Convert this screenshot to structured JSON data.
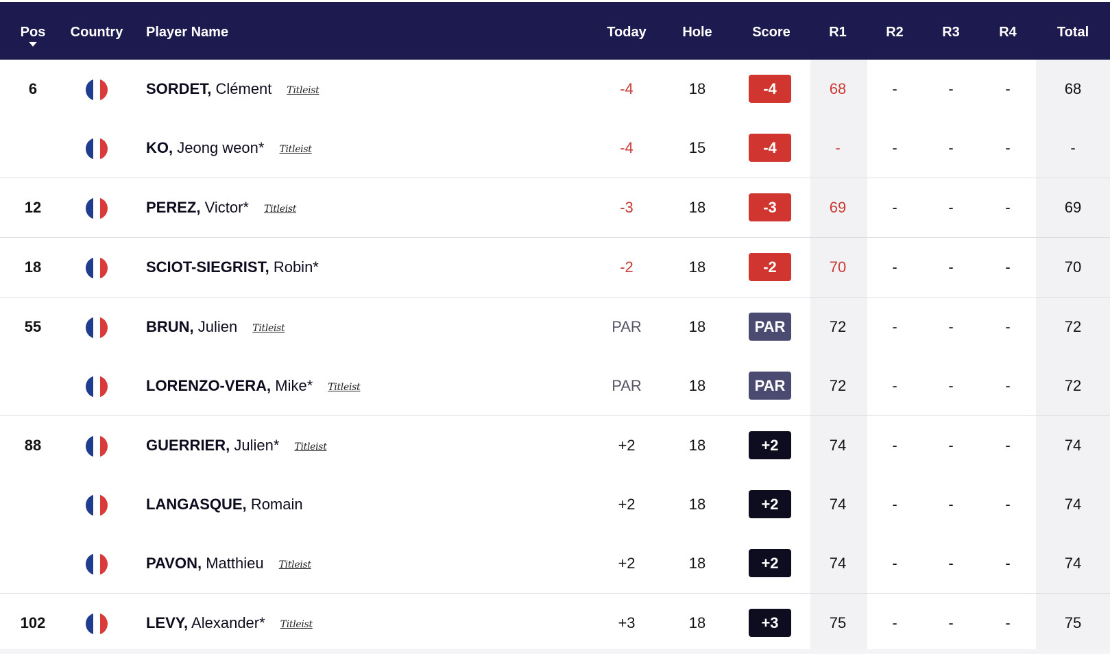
{
  "colors": {
    "header_bg": "#1c1a4f",
    "under_par": "#d0352f",
    "par": "#4b4b72",
    "over_par": "#0d0d1f"
  },
  "header": {
    "pos": "Pos",
    "country": "Country",
    "player_name": "Player Name",
    "today": "Today",
    "hole": "Hole",
    "score": "Score",
    "r1": "R1",
    "r2": "R2",
    "r3": "R3",
    "r4": "R4",
    "total": "Total"
  },
  "rows": [
    {
      "pos": "6",
      "last": "SORDET,",
      "first": "Clément",
      "brand": "Titleist",
      "today": "-4",
      "hole": "18",
      "score": "-4",
      "r1": "68",
      "r2": "-",
      "r3": "-",
      "r4": "-",
      "total": "68",
      "status": "under"
    },
    {
      "pos": "",
      "last": "KO,",
      "first": "Jeong weon*",
      "brand": "Titleist",
      "today": "-4",
      "hole": "15",
      "score": "-4",
      "r1": "-",
      "r2": "-",
      "r3": "-",
      "r4": "-",
      "total": "-",
      "status": "under"
    },
    {
      "pos": "12",
      "last": "PEREZ,",
      "first": "Victor*",
      "brand": "Titleist",
      "today": "-3",
      "hole": "18",
      "score": "-3",
      "r1": "69",
      "r2": "-",
      "r3": "-",
      "r4": "-",
      "total": "69",
      "status": "under"
    },
    {
      "pos": "18",
      "last": "SCIOT-SIEGRIST,",
      "first": "Robin*",
      "brand": "",
      "today": "-2",
      "hole": "18",
      "score": "-2",
      "r1": "70",
      "r2": "-",
      "r3": "-",
      "r4": "-",
      "total": "70",
      "status": "under"
    },
    {
      "pos": "55",
      "last": "BRUN,",
      "first": "Julien",
      "brand": "Titleist",
      "today": "PAR",
      "hole": "18",
      "score": "PAR",
      "r1": "72",
      "r2": "-",
      "r3": "-",
      "r4": "-",
      "total": "72",
      "status": "par"
    },
    {
      "pos": "",
      "last": "LORENZO-VERA,",
      "first": "Mike*",
      "brand": "Titleist",
      "today": "PAR",
      "hole": "18",
      "score": "PAR",
      "r1": "72",
      "r2": "-",
      "r3": "-",
      "r4": "-",
      "total": "72",
      "status": "par"
    },
    {
      "pos": "88",
      "last": "GUERRIER,",
      "first": "Julien*",
      "brand": "Titleist",
      "today": "+2",
      "hole": "18",
      "score": "+2",
      "r1": "74",
      "r2": "-",
      "r3": "-",
      "r4": "-",
      "total": "74",
      "status": "over"
    },
    {
      "pos": "",
      "last": "LANGASQUE,",
      "first": "Romain",
      "brand": "",
      "today": "+2",
      "hole": "18",
      "score": "+2",
      "r1": "74",
      "r2": "-",
      "r3": "-",
      "r4": "-",
      "total": "74",
      "status": "over"
    },
    {
      "pos": "",
      "last": "PAVON,",
      "first": "Matthieu",
      "brand": "Titleist",
      "today": "+2",
      "hole": "18",
      "score": "+2",
      "r1": "74",
      "r2": "-",
      "r3": "-",
      "r4": "-",
      "total": "74",
      "status": "over"
    },
    {
      "pos": "102",
      "last": "LEVY,",
      "first": "Alexander*",
      "brand": "Titleist",
      "today": "+3",
      "hole": "18",
      "score": "+3",
      "r1": "75",
      "r2": "-",
      "r3": "-",
      "r4": "-",
      "total": "75",
      "status": "over"
    }
  ]
}
